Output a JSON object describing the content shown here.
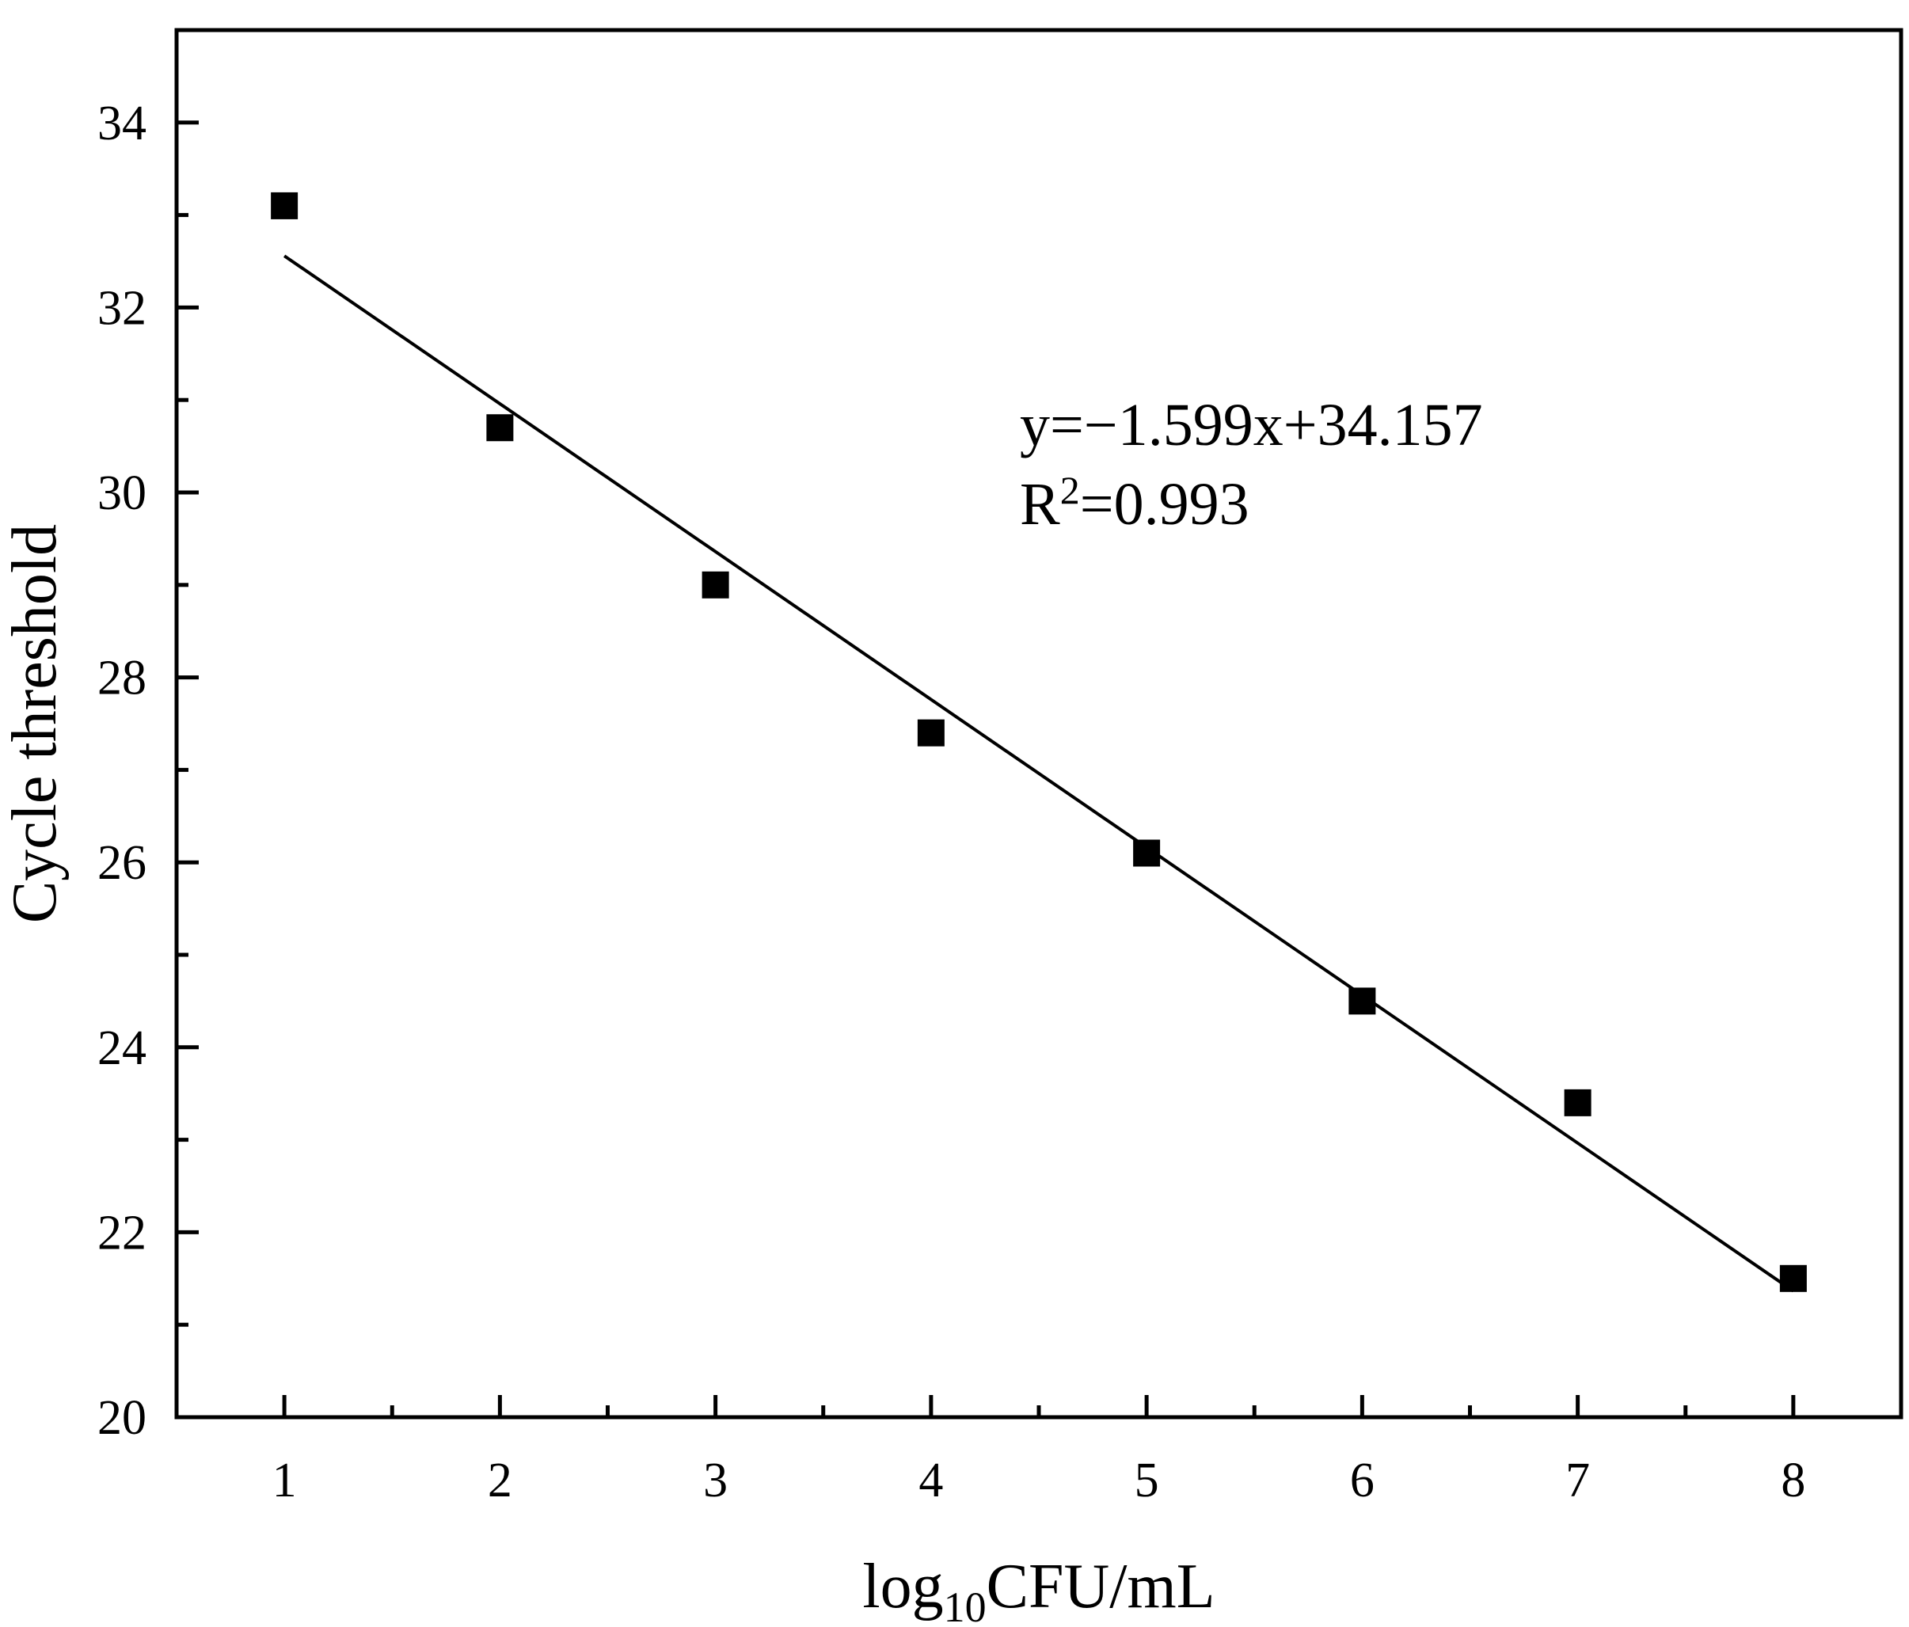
{
  "chart_data": {
    "type": "scatter",
    "xlabel_main": "log",
    "xlabel_sub": "10",
    "xlabel_rest": "CFU/mL",
    "ylabel": "Cycle threshold",
    "xlim": [
      0.5,
      8.5
    ],
    "ylim": [
      20,
      35
    ],
    "x_ticks": [
      1,
      2,
      3,
      4,
      5,
      6,
      7,
      8
    ],
    "x_tick_labels": [
      "1",
      "2",
      "3",
      "4",
      "5",
      "6",
      "7",
      "8"
    ],
    "x_minor_ticks": [
      1.5,
      2.5,
      3.5,
      4.5,
      5.5,
      6.5,
      7.5
    ],
    "y_ticks": [
      20,
      22,
      24,
      26,
      28,
      30,
      32,
      34
    ],
    "y_tick_labels": [
      "20",
      "22",
      "24",
      "26",
      "28",
      "30",
      "32",
      "34"
    ],
    "y_minor_ticks": [
      21,
      23,
      25,
      27,
      29,
      31,
      33
    ],
    "grid": false,
    "series": [
      {
        "x": [
          1,
          2,
          3,
          4,
          5,
          6,
          7,
          8
        ],
        "y": [
          33.1,
          30.7,
          29.0,
          27.4,
          26.1,
          24.5,
          23.4,
          21.5
        ],
        "marker": "square",
        "color": "#000000"
      }
    ],
    "fit_line": {
      "slope": -1.599,
      "intercept": 34.157,
      "x_range": [
        1,
        8
      ],
      "color": "#000000"
    },
    "annotation": {
      "equation": "y=−1.599x+34.157",
      "r_main": "R",
      "r_sup": "2",
      "r_value": "=0.993"
    }
  }
}
